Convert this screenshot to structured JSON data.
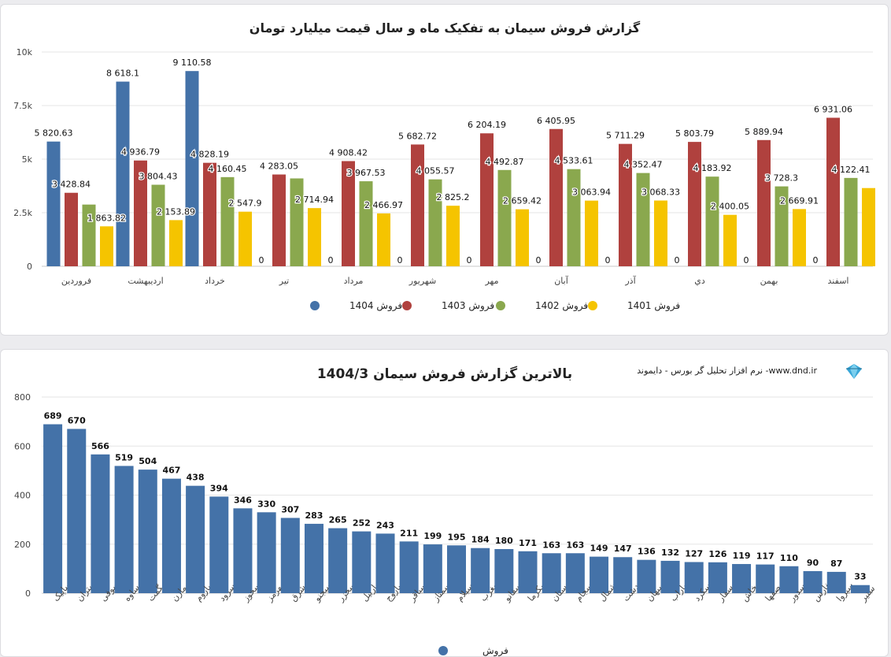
{
  "chart_data": [
    {
      "type": "bar",
      "title": "گزارش فروش سیمان به تفکیک ماه و سال قیمت میلیارد تومان",
      "ylim": [
        0,
        10000
      ],
      "ytick_labels": [
        "0",
        "2.5k",
        "5k",
        "7.5k",
        "10k"
      ],
      "grid": true,
      "legend": "bottom",
      "categories": [
        "فروردین",
        "اردیبهشت",
        "خرداد",
        "تیر",
        "مرداد",
        "شهریور",
        "مهر",
        "آبان",
        "آذر",
        "دي",
        "بهمن",
        "اسفند"
      ],
      "series": [
        {
          "name": "فروش 1404",
          "color": "#4472a8",
          "values": [
            5820.63,
            8618.1,
            9110.58,
            0,
            0,
            0,
            0,
            0,
            0,
            0,
            0,
            0
          ],
          "labels": [
            "5 820.63",
            "8 618.1",
            "9 110.58",
            "0",
            "0",
            "0",
            "0",
            "0",
            "0",
            "0",
            "0",
            "0"
          ]
        },
        {
          "name": "فروش 1403",
          "color": "#b0413e",
          "values": [
            3428.84,
            4936.79,
            4828.19,
            4283.05,
            4908.42,
            5682.72,
            6204.19,
            6405.95,
            5711.29,
            5803.79,
            5889.94,
            6931.06
          ],
          "labels": [
            "3 428.84",
            "4 936.79",
            "4 828.19",
            "4 283.05",
            "4 908.42",
            "5 682.72",
            "6 204.19",
            "6 405.95",
            "5 711.29",
            "5 803.79",
            "5 889.94",
            "6 931.06"
          ]
        },
        {
          "name": "فروش 1402",
          "color": "#8aa84e",
          "values": [
            2880,
            3804.43,
            4160.45,
            4100,
            3967.53,
            4055.57,
            4492.87,
            4533.61,
            4352.47,
            4183.92,
            3728.3,
            4122.41
          ],
          "labels": [
            "",
            "3 804.43",
            "4 160.45",
            "",
            "3 967.53",
            "4 055.57",
            "4 492.87",
            "4 533.61",
            "4 352.47",
            "4 183.92",
            "3 728.3",
            "4 122.41"
          ]
        },
        {
          "name": "فروش 1401",
          "color": "#f5c400",
          "values": [
            1863.82,
            2153.89,
            2547.9,
            2714.94,
            2466.97,
            2825.2,
            2659.42,
            3063.94,
            3068.33,
            2400.05,
            2669.91,
            3650
          ],
          "labels": [
            "1 863.82",
            "2 153.89",
            "2 547.9",
            "2 714.94",
            "2 466.97",
            "2 825.2",
            "2 659.42",
            "3 063.94",
            "3 068.33",
            "2 400.05",
            "2 669.91",
            ""
          ]
        }
      ]
    },
    {
      "type": "bar",
      "title": "بالاترین گزارش فروش سیمان 1404/3",
      "ylim": [
        0,
        800
      ],
      "ytick_labels": [
        "0",
        "200",
        "400",
        "600",
        "800"
      ],
      "grid": true,
      "legend": "bottom",
      "categories": [
        "ساپیک",
        "ستران",
        "سصوفی",
        "ساوه",
        "سهگمت",
        "سمازن",
        "ساروم",
        "سرود",
        "سخوز",
        "سهرمز",
        "سشرق",
        "سیجنو",
        "سخزر",
        "ساربیل",
        "ساروج",
        "سباقر",
        "سمتاز",
        "سیلام",
        "سغرب",
        "سفانو",
        "سکرما",
        "اردستان",
        "سجام",
        "سشمال",
        "سدشت",
        "سبهان",
        "ساراب",
        "سکرد",
        "سفار",
        "سخاش",
        "سصفها",
        "سدور",
        "سفارس",
        "سیروا",
        "سنیر"
      ],
      "series": [
        {
          "name": "فروش",
          "color": "#4472a8",
          "values": [
            689,
            670,
            566,
            519,
            504,
            467,
            438,
            394,
            346,
            330,
            307,
            283,
            265,
            252,
            243,
            211,
            199,
            195,
            184,
            180,
            171,
            163,
            163,
            149,
            147,
            136,
            132,
            127,
            126,
            119,
            117,
            110,
            90,
            87,
            33
          ]
        }
      ]
    }
  ],
  "header2": {
    "brand_text": "نرم افزار تحلیل گر بورس - دایموند -www.dnd.ir"
  },
  "colors": {
    "accent": "#4472a8",
    "red": "#b0413e",
    "green": "#8aa84e",
    "yellow": "#f5c400"
  }
}
